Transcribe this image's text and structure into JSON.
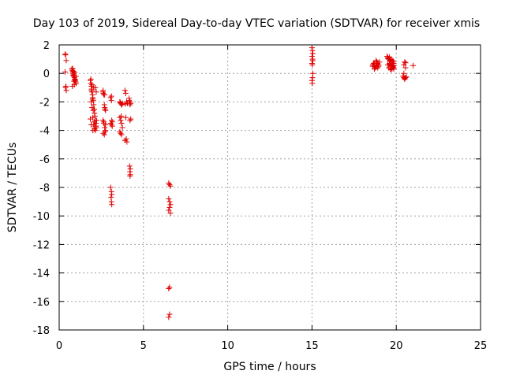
{
  "chart_data": {
    "type": "scatter",
    "title": "Day 103 of 2019, Sidereal Day-to-day VTEC variation (SDTVAR) for receiver xmis",
    "xlabel": "GPS time / hours",
    "ylabel": "SDTVAR / TECUs",
    "xlim": [
      0,
      25
    ],
    "ylim": [
      -18,
      2
    ],
    "x_ticks": [
      0,
      5,
      10,
      15,
      20,
      25
    ],
    "x_tick_labels": [
      "0",
      "5",
      "10",
      "15",
      "20",
      "25"
    ],
    "y_ticks": [
      2,
      0,
      -2,
      -4,
      -6,
      -8,
      -10,
      -12,
      -14,
      -16,
      -18
    ],
    "y_tick_labels": [
      "2",
      "0",
      "-2",
      "-4",
      "-6",
      "-8",
      "-10",
      "-12",
      "-14",
      "-16",
      "-18"
    ],
    "grid": true,
    "marker": "+",
    "color": "#e00000",
    "series": [
      {
        "name": "SDTVAR",
        "x": [
          0.35,
          0.38,
          0.42,
          0.35,
          0.4,
          0.38,
          0.42,
          0.4,
          0.75,
          0.78,
          0.8,
          0.82,
          0.85,
          0.88,
          0.9,
          0.92,
          0.95,
          0.98,
          1.0,
          0.8,
          0.9,
          0.85,
          0.95,
          1.0,
          0.78,
          0.88,
          0.92,
          0.82,
          1.85,
          1.88,
          1.9,
          1.92,
          1.95,
          1.98,
          2.0,
          2.02,
          2.05,
          2.08,
          2.1,
          2.12,
          2.15,
          2.18,
          2.2,
          1.9,
          1.95,
          2.0,
          2.05,
          2.1,
          2.15,
          2.2,
          1.88,
          1.92,
          1.98,
          2.02,
          2.08,
          2.12,
          2.18,
          2.22,
          1.95,
          2.05,
          1.85,
          1.9,
          2.0,
          2.1,
          2.2,
          2.15,
          2.6,
          2.62,
          2.65,
          2.68,
          2.7,
          2.72,
          2.75,
          2.6,
          2.65,
          2.7,
          2.75,
          2.62,
          2.68,
          2.72,
          2.6,
          2.7,
          2.65,
          2.75,
          3.05,
          3.1,
          3.12,
          3.15,
          3.05,
          3.1,
          3.15,
          3.05,
          3.1,
          3.12,
          3.08,
          3.1,
          3.12,
          3.1,
          3.6,
          3.65,
          3.7,
          3.75,
          3.6,
          3.65,
          3.7,
          3.75,
          3.6,
          3.65,
          3.7,
          3.62,
          3.68,
          3.72,
          3.9,
          3.95,
          4.0,
          4.05,
          3.92,
          3.98,
          3.9,
          4.02,
          3.95,
          4.15,
          4.2,
          4.25,
          4.2,
          4.15,
          4.25,
          4.2,
          4.18,
          4.22,
          4.2,
          4.22,
          4.2,
          6.5,
          6.55,
          6.6,
          6.5,
          6.55,
          6.6,
          6.55,
          6.5,
          6.6,
          6.55,
          6.5,
          6.55,
          6.5,
          15.0,
          15.02,
          15.05,
          15.0,
          15.03,
          15.05,
          15.0,
          15.02,
          15.05,
          15.0,
          15.02,
          15.03,
          18.6,
          18.65,
          18.7,
          18.75,
          18.8,
          18.85,
          18.9,
          18.95,
          19.0,
          18.7,
          18.8,
          18.9,
          18.65,
          18.75,
          18.85,
          18.95,
          18.7,
          18.8,
          18.9,
          18.6,
          19.45,
          19.5,
          19.55,
          19.6,
          19.65,
          19.7,
          19.75,
          19.8,
          19.85,
          19.5,
          19.6,
          19.7,
          19.8,
          19.55,
          19.65,
          19.75,
          19.85,
          19.5,
          19.6,
          19.7,
          19.8,
          19.75,
          19.85,
          19.6,
          19.7,
          19.8,
          19.85,
          19.7,
          20.4,
          20.45,
          20.5,
          20.55,
          20.6,
          20.45,
          20.5,
          20.55,
          20.45,
          20.5,
          20.55,
          21.0
        ],
        "y": [
          1.35,
          1.3,
          0.9,
          0.1,
          -0.9,
          -1.0,
          -1.2,
          -0.9,
          0.3,
          0.2,
          0.1,
          0.0,
          -0.1,
          -0.2,
          -0.3,
          -0.4,
          -0.5,
          -0.6,
          -0.7,
          0.35,
          -0.8,
          0.15,
          -0.45,
          -0.2,
          -0.9,
          -0.55,
          0.05,
          -0.15,
          -0.5,
          -0.7,
          -0.9,
          -1.1,
          -1.3,
          -1.5,
          -1.7,
          -1.9,
          -2.2,
          -2.5,
          -2.8,
          -3.0,
          -3.3,
          -3.5,
          -3.7,
          -2.0,
          -2.4,
          -3.1,
          -3.6,
          -3.9,
          -4.0,
          -3.8,
          -0.4,
          -1.2,
          -1.8,
          -2.6,
          -3.4,
          -3.7,
          -3.5,
          -3.3,
          -0.8,
          -1.0,
          -3.2,
          -3.6,
          -4.0,
          -3.9,
          -1.3,
          -1.0,
          -1.3,
          -1.4,
          -1.5,
          -2.2,
          -2.4,
          -2.5,
          -2.6,
          -3.3,
          -3.5,
          -3.8,
          -4.0,
          -4.2,
          -4.3,
          -4.1,
          -1.2,
          -1.5,
          -3.4,
          -3.6,
          -1.7,
          -1.9,
          -3.3,
          -3.4,
          -3.5,
          -3.6,
          -3.7,
          -8.0,
          -8.3,
          -8.5,
          -8.7,
          -9.0,
          -9.2,
          -1.6,
          -2.0,
          -2.1,
          -2.2,
          -2.1,
          -3.1,
          -3.3,
          -3.5,
          -3.8,
          -4.1,
          -4.2,
          -4.3,
          -2.05,
          -3.0,
          -2.2,
          -1.2,
          -1.4,
          -2.0,
          -2.1,
          -2.15,
          -4.6,
          -4.7,
          -4.8,
          -3.1,
          -1.9,
          -2.0,
          -2.1,
          -2.2,
          -1.75,
          -3.2,
          -3.3,
          -6.5,
          -6.7,
          -6.9,
          -7.1,
          -7.2,
          -7.7,
          -7.8,
          -7.9,
          -8.8,
          -9.0,
          -9.2,
          -9.4,
          -9.6,
          -9.8,
          -15.0,
          -15.1,
          -16.9,
          -17.1,
          1.8,
          1.6,
          1.4,
          1.2,
          1.0,
          0.9,
          0.7,
          0.6,
          0.0,
          -0.5,
          -0.7,
          -0.3,
          0.5,
          0.7,
          0.6,
          0.4,
          0.8,
          0.5,
          0.7,
          0.6,
          0.8,
          0.3,
          0.9,
          0.4,
          0.6,
          0.4,
          0.8,
          0.5,
          0.7,
          0.5,
          0.6,
          0.6,
          1.2,
          1.1,
          1.0,
          1.15,
          0.9,
          1.0,
          0.8,
          0.9,
          0.7,
          0.6,
          0.7,
          0.5,
          0.5,
          0.4,
          0.3,
          0.35,
          0.3,
          1.05,
          0.85,
          0.95,
          0.8,
          0.6,
          0.55,
          0.65,
          0.55,
          0.45,
          0.4,
          0.25,
          -0.2,
          -0.3,
          -0.35,
          -0.3,
          -0.25,
          0.6,
          0.8,
          0.4,
          0.0,
          -0.4,
          0.75,
          0.55
        ]
      }
    ]
  }
}
